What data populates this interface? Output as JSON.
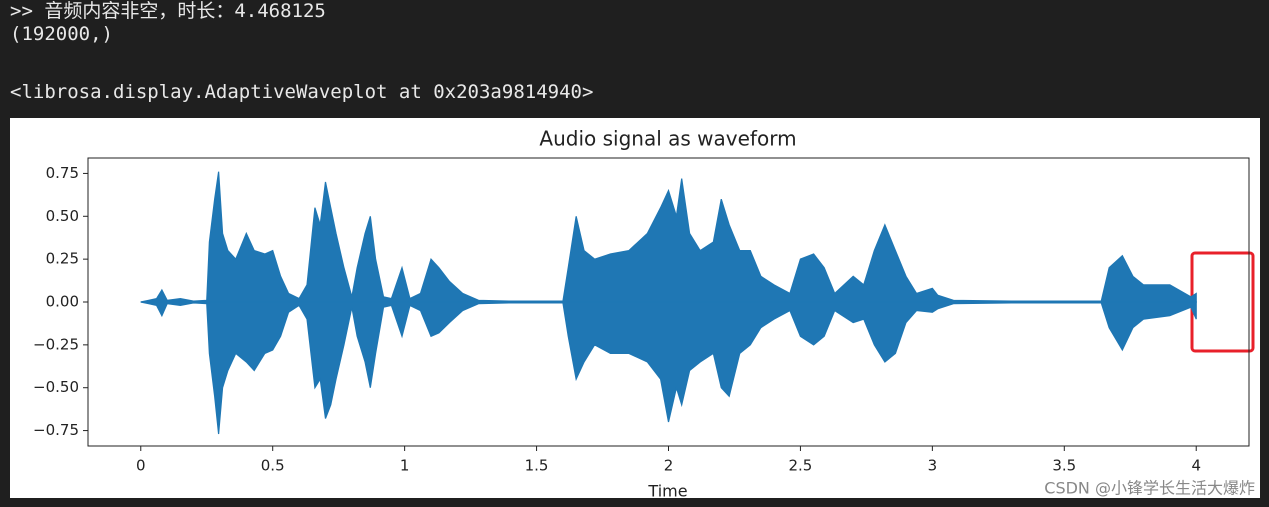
{
  "console": [
    ">> 音频内容非空，时长：4.468125",
    "(192000,)",
    "<librosa.display.AdaptiveWaveplot at 0x203a9814940>"
  ],
  "watermark": "CSDN @小锋学长生活大爆炸",
  "chart_data": {
    "type": "waveform",
    "title": "Audio signal as waveform",
    "x_label": "Time",
    "color": "#1f77b4",
    "xlim": [
      -0.2,
      4.2
    ],
    "ylim": [
      -0.84,
      0.84
    ],
    "xticks": [
      0,
      0.5,
      1,
      1.5,
      2,
      2.5,
      3,
      3.5,
      4
    ],
    "yticks": [
      {
        "value": 0.75,
        "label": "0.75"
      },
      {
        "value": 0.5,
        "label": "0.50"
      },
      {
        "value": 0.25,
        "label": "0.25"
      },
      {
        "value": 0,
        "label": "0.00"
      },
      {
        "value": -0.25,
        "label": "−0.25"
      },
      {
        "value": -0.5,
        "label": "−0.50"
      },
      {
        "value": -0.75,
        "label": "−0.75"
      }
    ],
    "x": [
      0,
      0.03,
      0.06,
      0.08,
      0.1,
      0.15,
      0.2,
      0.25,
      0.26,
      0.28,
      0.295,
      0.31,
      0.33,
      0.36,
      0.4,
      0.43,
      0.47,
      0.5,
      0.53,
      0.56,
      0.6,
      0.63,
      0.66,
      0.68,
      0.7,
      0.72,
      0.74,
      0.77,
      0.8,
      0.82,
      0.85,
      0.87,
      0.89,
      0.92,
      0.95,
      0.99,
      1.02,
      1.06,
      1.1,
      1.13,
      1.17,
      1.22,
      1.28,
      1.4,
      1.6,
      1.62,
      1.65,
      1.68,
      1.72,
      1.78,
      1.85,
      1.92,
      1.97,
      2.0,
      2.03,
      2.05,
      2.08,
      2.12,
      2.17,
      2.2,
      2.23,
      2.27,
      2.31,
      2.35,
      2.4,
      2.46,
      2.5,
      2.55,
      2.59,
      2.63,
      2.7,
      2.74,
      2.78,
      2.82,
      2.86,
      2.9,
      2.94,
      3.0,
      3.02,
      3.08,
      3.3,
      3.64,
      3.67,
      3.72,
      3.76,
      3.8,
      3.9,
      3.98,
      4.0
    ],
    "upper": [
      0,
      0.01,
      0.02,
      0.07,
      0.01,
      0.02,
      0.005,
      0.01,
      0.35,
      0.6,
      0.76,
      0.4,
      0.3,
      0.25,
      0.4,
      0.3,
      0.28,
      0.3,
      0.15,
      0.05,
      0.02,
      0.1,
      0.55,
      0.45,
      0.7,
      0.55,
      0.4,
      0.2,
      0.03,
      0.2,
      0.4,
      0.5,
      0.25,
      0.03,
      0.02,
      0.2,
      0.02,
      0.05,
      0.25,
      0.2,
      0.12,
      0.05,
      0.01,
      0.005,
      0.005,
      0.2,
      0.5,
      0.3,
      0.25,
      0.28,
      0.3,
      0.4,
      0.55,
      0.65,
      0.5,
      0.72,
      0.4,
      0.3,
      0.35,
      0.6,
      0.45,
      0.3,
      0.3,
      0.15,
      0.1,
      0.05,
      0.25,
      0.28,
      0.2,
      0.05,
      0.15,
      0.1,
      0.3,
      0.45,
      0.3,
      0.15,
      0.05,
      0.08,
      0.04,
      0.01,
      0.005,
      0.005,
      0.2,
      0.27,
      0.15,
      0.1,
      0.1,
      0.03,
      0.05
    ],
    "lower": [
      0,
      -0.01,
      -0.02,
      -0.08,
      -0.01,
      -0.02,
      -0.005,
      -0.01,
      -0.3,
      -0.55,
      -0.77,
      -0.5,
      -0.4,
      -0.3,
      -0.35,
      -0.4,
      -0.3,
      -0.28,
      -0.2,
      -0.06,
      -0.02,
      -0.1,
      -0.5,
      -0.45,
      -0.68,
      -0.6,
      -0.45,
      -0.25,
      -0.03,
      -0.2,
      -0.35,
      -0.5,
      -0.3,
      -0.03,
      -0.02,
      -0.2,
      -0.02,
      -0.05,
      -0.2,
      -0.18,
      -0.12,
      -0.05,
      -0.01,
      -0.005,
      -0.005,
      -0.2,
      -0.45,
      -0.35,
      -0.25,
      -0.3,
      -0.3,
      -0.35,
      -0.45,
      -0.7,
      -0.5,
      -0.6,
      -0.4,
      -0.35,
      -0.3,
      -0.5,
      -0.55,
      -0.3,
      -0.25,
      -0.15,
      -0.1,
      -0.05,
      -0.2,
      -0.25,
      -0.2,
      -0.05,
      -0.12,
      -0.1,
      -0.25,
      -0.35,
      -0.3,
      -0.12,
      -0.05,
      -0.06,
      -0.04,
      -0.01,
      -0.005,
      -0.005,
      -0.15,
      -0.28,
      -0.15,
      -0.1,
      -0.08,
      -0.03,
      -0.1
    ]
  }
}
